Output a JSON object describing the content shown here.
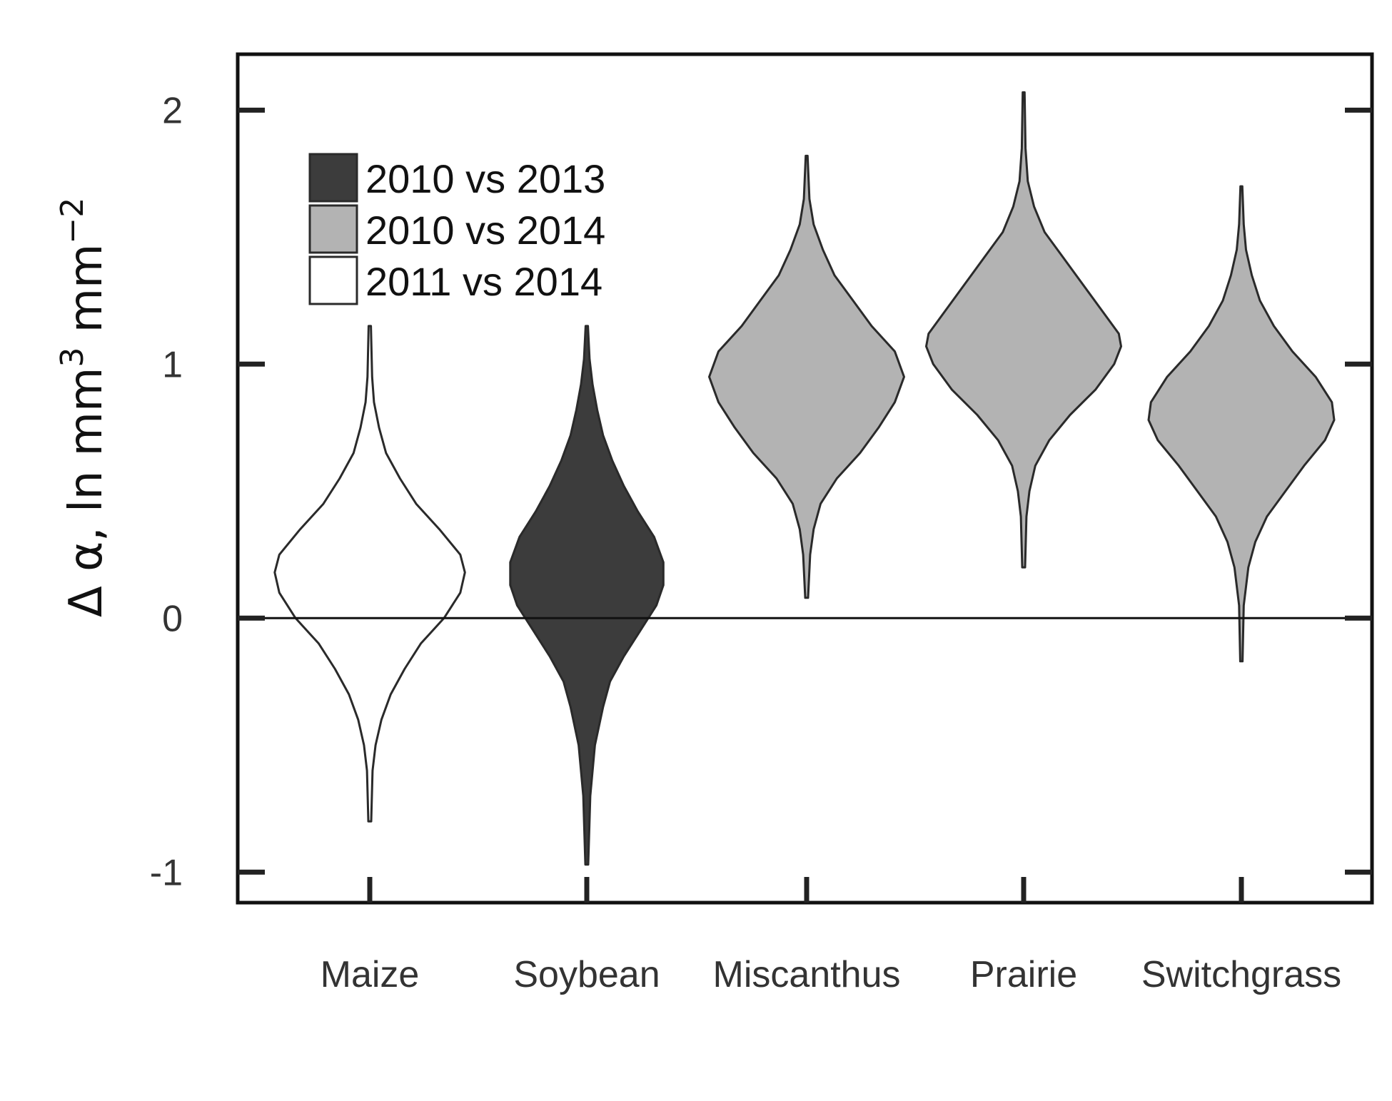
{
  "chart_data": {
    "type": "violin",
    "title": "",
    "xlabel": "",
    "ylabel": {
      "prefix": "Δ α, ln mm",
      "sup1": "3",
      "middle": " mm",
      "sup2": "−2"
    },
    "ylim": [
      -1.12,
      2.22
    ],
    "yticks": [
      -1,
      0,
      1,
      2
    ],
    "ytick_labels": [
      "-1",
      "0",
      "1",
      "2"
    ],
    "reference_line": 0,
    "grid": false,
    "legend_position": "top-left",
    "colors": {
      "2010 vs 2013": "#3c3c3c",
      "2010 vs 2014": "#b3b3b3",
      "2011 vs 2014": "#ffffff",
      "outline": "#2a2a2a",
      "axis": "#111111"
    },
    "legend": [
      "2010 vs 2013",
      "2010 vs 2014",
      "2011 vs 2014"
    ],
    "categories": [
      "Maize",
      "Soybean",
      "Miscanthus",
      "Prairie",
      "Switchgrass"
    ],
    "series": [
      {
        "category": "Maize",
        "group": "2011 vs 2014",
        "min": -0.8,
        "max": 1.15,
        "profile": [
          [
            -0.8,
            0.006
          ],
          [
            -0.6,
            0.012
          ],
          [
            -0.5,
            0.025
          ],
          [
            -0.4,
            0.05
          ],
          [
            -0.3,
            0.09
          ],
          [
            -0.2,
            0.15
          ],
          [
            -0.1,
            0.22
          ],
          [
            0.0,
            0.32
          ],
          [
            0.1,
            0.39
          ],
          [
            0.18,
            0.41
          ],
          [
            0.25,
            0.39
          ],
          [
            0.35,
            0.3
          ],
          [
            0.45,
            0.2
          ],
          [
            0.55,
            0.13
          ],
          [
            0.65,
            0.07
          ],
          [
            0.75,
            0.04
          ],
          [
            0.85,
            0.018
          ],
          [
            0.95,
            0.01
          ],
          [
            1.15,
            0.005
          ]
        ]
      },
      {
        "category": "Soybean",
        "group": "2010 vs 2013",
        "min": -0.97,
        "max": 1.15,
        "profile": [
          [
            -0.97,
            0.006
          ],
          [
            -0.7,
            0.015
          ],
          [
            -0.5,
            0.035
          ],
          [
            -0.35,
            0.07
          ],
          [
            -0.25,
            0.1
          ],
          [
            -0.15,
            0.16
          ],
          [
            -0.05,
            0.23
          ],
          [
            0.05,
            0.3
          ],
          [
            0.13,
            0.33
          ],
          [
            0.22,
            0.33
          ],
          [
            0.32,
            0.29
          ],
          [
            0.42,
            0.22
          ],
          [
            0.52,
            0.16
          ],
          [
            0.62,
            0.11
          ],
          [
            0.72,
            0.07
          ],
          [
            0.82,
            0.045
          ],
          [
            0.92,
            0.025
          ],
          [
            1.02,
            0.012
          ],
          [
            1.15,
            0.005
          ]
        ]
      },
      {
        "category": "Miscanthus",
        "group": "2010 vs 2014",
        "min": 0.08,
        "max": 1.82,
        "profile": [
          [
            0.08,
            0.006
          ],
          [
            0.25,
            0.015
          ],
          [
            0.35,
            0.03
          ],
          [
            0.45,
            0.06
          ],
          [
            0.55,
            0.13
          ],
          [
            0.65,
            0.23
          ],
          [
            0.75,
            0.31
          ],
          [
            0.85,
            0.38
          ],
          [
            0.95,
            0.42
          ],
          [
            1.05,
            0.38
          ],
          [
            1.15,
            0.28
          ],
          [
            1.25,
            0.2
          ],
          [
            1.35,
            0.12
          ],
          [
            1.45,
            0.07
          ],
          [
            1.55,
            0.03
          ],
          [
            1.65,
            0.012
          ],
          [
            1.82,
            0.004
          ]
        ]
      },
      {
        "category": "Prairie",
        "group": "2010 vs 2014",
        "min": 0.2,
        "max": 2.07,
        "profile": [
          [
            0.2,
            0.006
          ],
          [
            0.4,
            0.012
          ],
          [
            0.5,
            0.025
          ],
          [
            0.6,
            0.05
          ],
          [
            0.7,
            0.11
          ],
          [
            0.8,
            0.2
          ],
          [
            0.9,
            0.31
          ],
          [
            1.0,
            0.39
          ],
          [
            1.07,
            0.42
          ],
          [
            1.12,
            0.41
          ],
          [
            1.22,
            0.33
          ],
          [
            1.32,
            0.25
          ],
          [
            1.42,
            0.17
          ],
          [
            1.52,
            0.09
          ],
          [
            1.62,
            0.045
          ],
          [
            1.72,
            0.018
          ],
          [
            1.85,
            0.008
          ],
          [
            2.07,
            0.004
          ]
        ]
      },
      {
        "category": "Switchgrass",
        "group": "2010 vs 2014",
        "min": -0.17,
        "max": 1.7,
        "profile": [
          [
            -0.17,
            0.005
          ],
          [
            0.05,
            0.01
          ],
          [
            0.2,
            0.03
          ],
          [
            0.3,
            0.06
          ],
          [
            0.4,
            0.11
          ],
          [
            0.5,
            0.19
          ],
          [
            0.6,
            0.27
          ],
          [
            0.7,
            0.36
          ],
          [
            0.78,
            0.4
          ],
          [
            0.85,
            0.39
          ],
          [
            0.95,
            0.32
          ],
          [
            1.05,
            0.22
          ],
          [
            1.15,
            0.14
          ],
          [
            1.25,
            0.08
          ],
          [
            1.35,
            0.045
          ],
          [
            1.45,
            0.02
          ],
          [
            1.55,
            0.01
          ],
          [
            1.7,
            0.004
          ]
        ]
      }
    ]
  }
}
